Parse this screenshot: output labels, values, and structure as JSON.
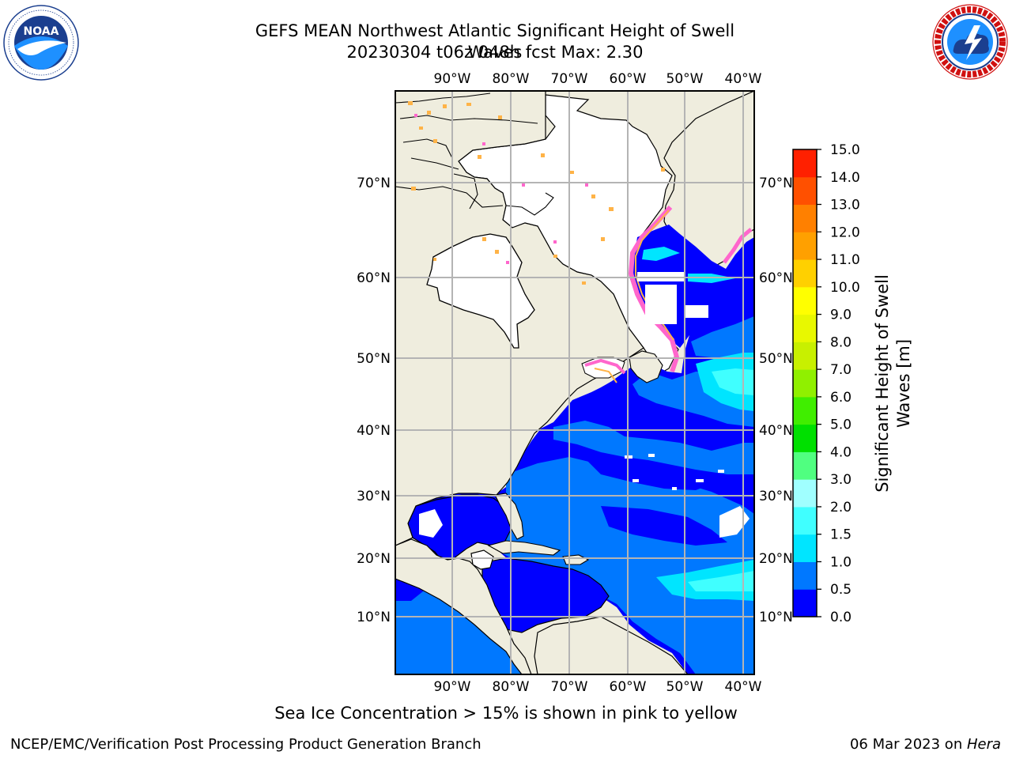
{
  "title": {
    "line1": "GEFS MEAN Northwest Atlantic Significant Height of Swell Waves",
    "line2": "20230304 t06z 048h fcst   Max: 2.30"
  },
  "logos": {
    "left": {
      "icon": "noaa-logo",
      "text": "NOAA",
      "ring_text": "NATIONAL OCEANIC AND ATMOSPHERIC ADMINISTRATION · U.S. DEPARTMENT OF COMMERCE"
    },
    "right": {
      "icon": "nws-logo",
      "ring_text": "NATIONAL WEATHER SERVICE"
    }
  },
  "map": {
    "lon_labels": [
      "90°W",
      "80°W",
      "70°W",
      "60°W",
      "50°W",
      "40°W"
    ],
    "lat_labels": [
      "70°N",
      "60°N",
      "50°N",
      "40°N",
      "30°N",
      "20°N",
      "10°N"
    ],
    "colors": {
      "land": "#efedde",
      "ice_free_land_mask": "#ffffff",
      "grid": "#b4b4b4",
      "coast": "#000000",
      "ice_pink": "#ff66cc",
      "ice_orange": "#ffb347",
      "ice_yellow": "#ffe033"
    }
  },
  "colorbar": {
    "label_line1": "Significant Height of Swell",
    "label_line2": "Waves [m]",
    "ticks": [
      "0.0",
      "0.5",
      "1.0",
      "1.5",
      "2.0",
      "3.0",
      "4.0",
      "5.0",
      "6.0",
      "7.0",
      "8.0",
      "9.0",
      "10.0",
      "11.0",
      "12.0",
      "13.0",
      "14.0",
      "15.0"
    ],
    "colors": [
      "#0000ff",
      "#0078ff",
      "#00e5ff",
      "#40ffff",
      "#a0ffff",
      "#50ff80",
      "#00e000",
      "#40ee00",
      "#90f000",
      "#c8f000",
      "#e8f800",
      "#ffff00",
      "#ffd000",
      "#ffa000",
      "#ff8000",
      "#ff5000",
      "#ff2000",
      "#ff0000"
    ]
  },
  "ice_note": "Sea Ice Concentration > 15% is shown in pink to yellow",
  "footer": {
    "left": "NCEP/EMC/Verification Post Processing Product Generation Branch",
    "right_date": "06 Mar 2023 on ",
    "right_host": "Hera"
  }
}
